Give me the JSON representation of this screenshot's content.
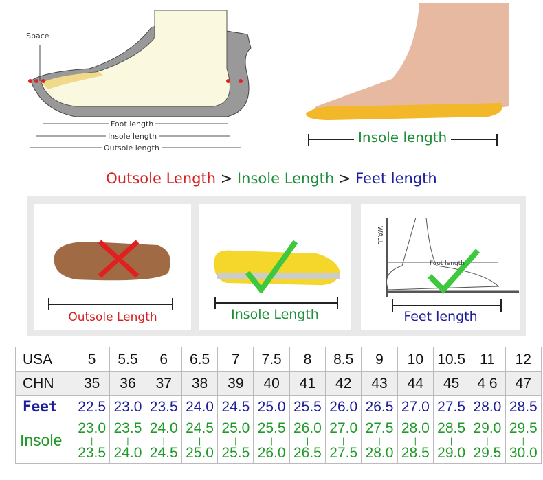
{
  "diagram": {
    "space": "Space",
    "foot_length": "Foot length",
    "insole_length": "Insole length",
    "outsole_length": "Outsole length"
  },
  "photo": {
    "insole_length": "Insole length"
  },
  "headline": {
    "part1": "Outsole Length",
    "sep1": " > ",
    "part2": "Insole Length",
    "sep2": " > ",
    "part3": "Feet length",
    "colors": {
      "outsole": "#d42020",
      "insole": "#1f8f3a",
      "feet": "#1d1d9c"
    }
  },
  "panels": [
    {
      "label": "Outsole Length",
      "mark": "cross-icon",
      "color": "#d42020"
    },
    {
      "label": "Insole Length",
      "mark": "check-icon",
      "color": "#1f8f3a"
    },
    {
      "label": "Feet length",
      "mark": "check-icon",
      "color": "#1d1d9c",
      "wall": "WALL",
      "foot_length": "Foot length"
    }
  ],
  "size_table": {
    "rows": [
      {
        "header": "USA",
        "values": [
          "5",
          "5.5",
          "6",
          "6.5",
          "7",
          "7.5",
          "8",
          "8.5",
          "9",
          "10",
          "10.5",
          "11",
          "12"
        ]
      },
      {
        "header": "CHN",
        "values": [
          "35",
          "36",
          "37",
          "38",
          "39",
          "40",
          "41",
          "42",
          "43",
          "44",
          "45",
          "4 6",
          "47"
        ]
      },
      {
        "header": "Feet",
        "values": [
          "22.5",
          "23.0",
          "23.5",
          "24.0",
          "24.5",
          "25.0",
          "25.5",
          "26.0",
          "26.5",
          "27.0",
          "27.5",
          "28.0",
          "28.5"
        ]
      },
      {
        "header": "Insole",
        "values": [
          [
            "23.0",
            "23.5"
          ],
          [
            "23.5",
            "24.0"
          ],
          [
            "24.0",
            "24.5"
          ],
          [
            "24.5",
            "25.0"
          ],
          [
            "25.0",
            "25.5"
          ],
          [
            "25.5",
            "26.0"
          ],
          [
            "26.0",
            "26.5"
          ],
          [
            "27.0",
            "27.5"
          ],
          [
            "27.5",
            "28.0"
          ],
          [
            "28.0",
            "28.5"
          ],
          [
            "28.5",
            "29.0"
          ],
          [
            "29.0",
            "29.5"
          ],
          [
            "29.5",
            "30.0"
          ]
        ]
      }
    ]
  }
}
